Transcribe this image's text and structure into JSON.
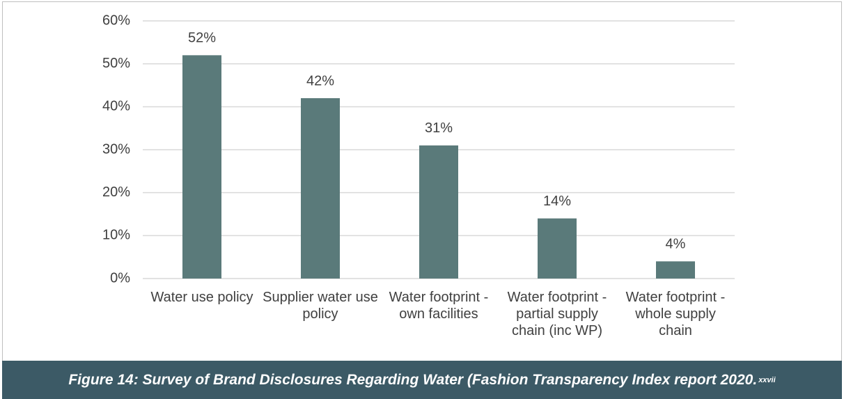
{
  "chart_data": {
    "type": "bar",
    "categories": [
      "Water use policy",
      "Supplier water use policy",
      "Water footprint - own facilities",
      "Water footprint - partial supply chain (inc WP)",
      "Water footprint - whole supply chain"
    ],
    "values": [
      52,
      42,
      31,
      14,
      4
    ],
    "value_labels": [
      "52%",
      "42%",
      "31%",
      "14%",
      "4%"
    ],
    "color": "#5a7a7a",
    "ylim": [
      0,
      60
    ],
    "yticks": [
      {
        "value": 0,
        "label": "0%"
      },
      {
        "value": 10,
        "label": "10%"
      },
      {
        "value": 20,
        "label": "20%"
      },
      {
        "value": 30,
        "label": "30%"
      },
      {
        "value": 40,
        "label": "40%"
      },
      {
        "value": 50,
        "label": "50%"
      },
      {
        "value": 60,
        "label": "60%"
      }
    ],
    "grid": true
  },
  "caption": {
    "text": "Figure 14: Survey of Brand Disclosures Regarding Water (Fashion Transparency Index report 2020.",
    "superscript": "xxvii"
  }
}
